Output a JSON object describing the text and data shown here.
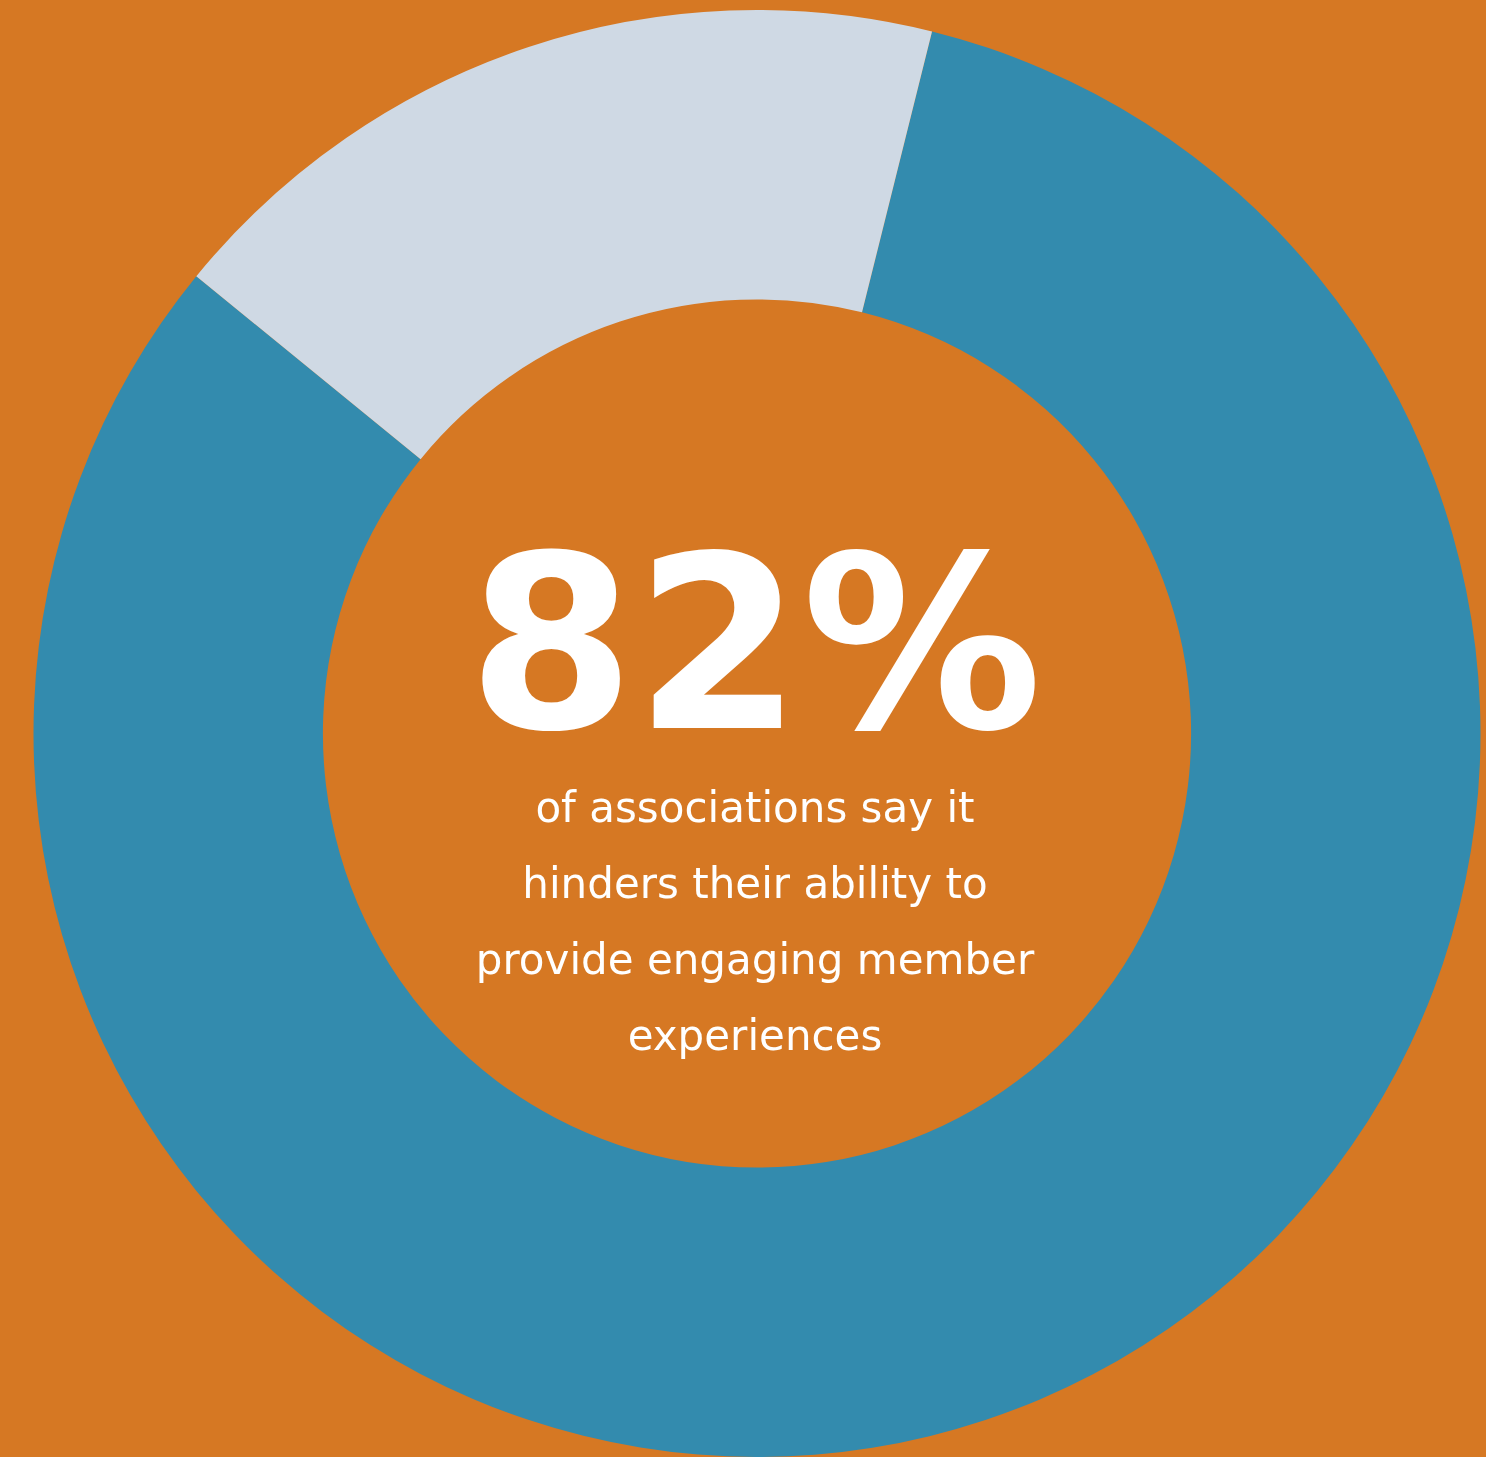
{
  "chart_data": {
    "type": "donut",
    "categories": [
      null,
      null
    ],
    "values": [
      82,
      18
    ],
    "colors": [
      "#338bae",
      "#cfd9e4"
    ],
    "title": "82%",
    "annotations": [
      "of associations say it hinders their ability to provide engaging member experiences"
    ],
    "legend": false
  }
}
